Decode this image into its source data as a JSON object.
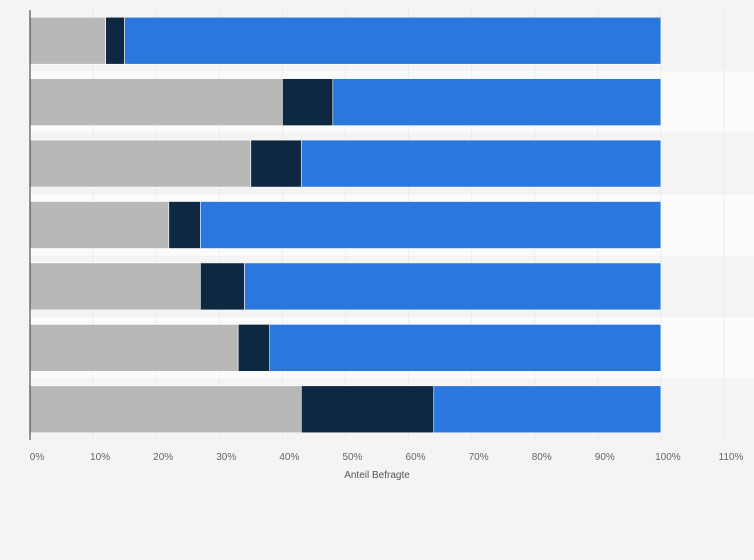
{
  "chart_data": {
    "type": "bar",
    "orientation": "horizontal",
    "stacked": true,
    "categories": [
      "",
      "",
      "",
      "",
      "",
      "",
      ""
    ],
    "series": [
      {
        "color": "#b8b8b8",
        "values": [
          12,
          40,
          35,
          22,
          27,
          33,
          43
        ]
      },
      {
        "color": "#0f2841",
        "values": [
          3,
          8,
          8,
          5,
          7,
          5,
          21
        ]
      },
      {
        "color": "#2a77dd",
        "values": [
          85,
          52,
          57,
          73,
          66,
          62,
          36
        ]
      }
    ],
    "xlabel": "Anteil Befragte",
    "ylabel": "",
    "xlim": [
      0,
      110
    ],
    "x_ticks": [
      "0%",
      "10%",
      "20%",
      "30%",
      "40%",
      "50%",
      "60%",
      "70%",
      "80%",
      "90%",
      "100%",
      "110%"
    ],
    "grid": true,
    "legend": "none"
  }
}
